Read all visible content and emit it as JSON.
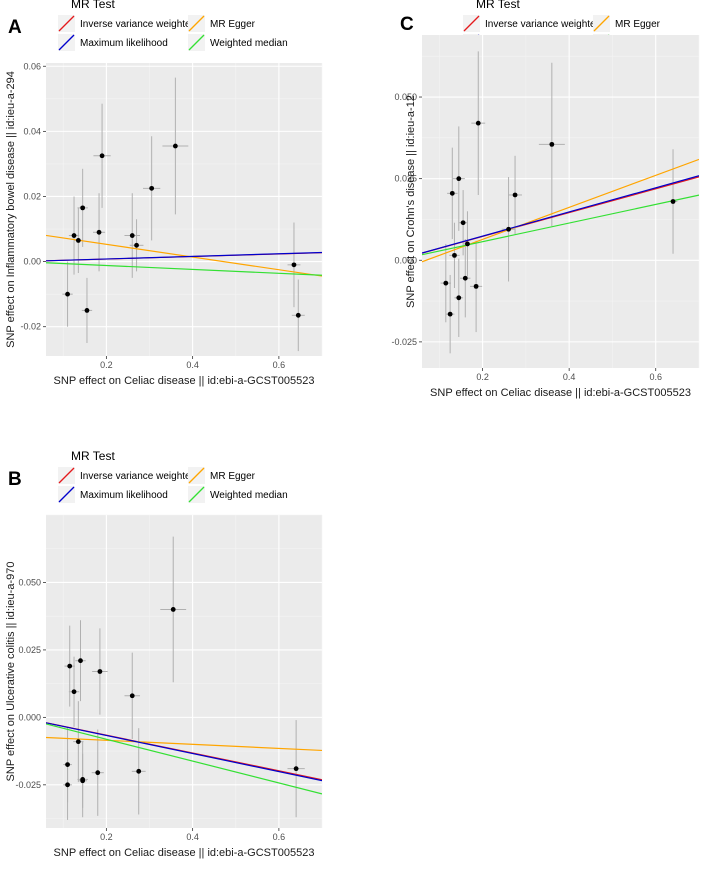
{
  "legend": {
    "title": "MR Test",
    "items": [
      {
        "label": "Inverse variance weighted",
        "color": "#e41a1c"
      },
      {
        "label": "MR Egger",
        "color": "#ffa500"
      },
      {
        "label": "Maximum likelihood",
        "color": "#0000cc"
      },
      {
        "label": "Weighted median",
        "color": "#33e033"
      }
    ]
  },
  "colors": {
    "panel_bg": "#ebebeb",
    "grid_major": "#ffffff",
    "grid_minor": "#f4f4f4",
    "point": "#000000",
    "errorbar": "#b0b0b0"
  },
  "chart_data": [
    {
      "panel": "A",
      "type": "scatter",
      "xlabel": "SNP effect on Celiac disease || id:ebi-a-GCST005523",
      "ylabel": "SNP effect on Inflammatory bowel disease || id:ieu-a-294",
      "xlim": [
        0.06,
        0.7
      ],
      "ylim": [
        -0.029,
        0.061
      ],
      "xticks": [
        {
          "v": 0.2,
          "label": "0.2"
        },
        {
          "v": 0.4,
          "label": "0.4"
        },
        {
          "v": 0.6,
          "label": "0.6"
        }
      ],
      "yticks": [
        {
          "v": -0.02,
          "label": "-0.02"
        },
        {
          "v": 0.0,
          "label": "0.00"
        },
        {
          "v": 0.02,
          "label": "0.02"
        },
        {
          "v": 0.04,
          "label": "0.04"
        },
        {
          "v": 0.06,
          "label": "0.06"
        }
      ],
      "points": [
        {
          "x": 0.11,
          "y": -0.01,
          "xerr": 0.012,
          "yerr": 0.01
        },
        {
          "x": 0.125,
          "y": 0.008,
          "xerr": 0.012,
          "yerr": 0.012
        },
        {
          "x": 0.135,
          "y": 0.0065,
          "xerr": 0.01,
          "yerr": 0.01
        },
        {
          "x": 0.145,
          "y": 0.0165,
          "xerr": 0.012,
          "yerr": 0.012
        },
        {
          "x": 0.155,
          "y": -0.015,
          "xerr": 0.012,
          "yerr": 0.01
        },
        {
          "x": 0.183,
          "y": 0.009,
          "xerr": 0.014,
          "yerr": 0.012
        },
        {
          "x": 0.19,
          "y": 0.0325,
          "xerr": 0.02,
          "yerr": 0.016
        },
        {
          "x": 0.26,
          "y": 0.008,
          "xerr": 0.018,
          "yerr": 0.013
        },
        {
          "x": 0.27,
          "y": 0.005,
          "xerr": 0.016,
          "yerr": 0.008
        },
        {
          "x": 0.305,
          "y": 0.0225,
          "xerr": 0.02,
          "yerr": 0.016
        },
        {
          "x": 0.36,
          "y": 0.0355,
          "xerr": 0.03,
          "yerr": 0.021
        },
        {
          "x": 0.635,
          "y": -0.001,
          "xerr": 0.015,
          "yerr": 0.013
        },
        {
          "x": 0.645,
          "y": -0.0165,
          "xerr": 0.015,
          "yerr": 0.011
        }
      ],
      "lines": [
        {
          "method": "Inverse variance weighted",
          "intercept": 0.0,
          "slope": 0.0039
        },
        {
          "method": "MR Egger",
          "intercept": 0.0092,
          "slope": -0.0195
        },
        {
          "method": "Maximum likelihood",
          "intercept": 0.0,
          "slope": 0.004
        },
        {
          "method": "Weighted median",
          "intercept": 0.0,
          "slope": -0.006
        }
      ]
    },
    {
      "panel": "B",
      "type": "scatter",
      "xlabel": "SNP effect on Celiac disease || id:ebi-a-GCST005523",
      "ylabel": "SNP effect on Ulcerative colitis || id:ieu-a-970",
      "xlim": [
        0.06,
        0.7
      ],
      "ylim": [
        -0.041,
        0.075
      ],
      "xticks": [
        {
          "v": 0.2,
          "label": "0.2"
        },
        {
          "v": 0.4,
          "label": "0.4"
        },
        {
          "v": 0.6,
          "label": "0.6"
        }
      ],
      "yticks": [
        {
          "v": -0.025,
          "label": "-0.025"
        },
        {
          "v": 0.0,
          "label": "0.000"
        },
        {
          "v": 0.025,
          "label": "0.025"
        },
        {
          "v": 0.05,
          "label": "0.050"
        }
      ],
      "points": [
        {
          "x": 0.11,
          "y": -0.0175,
          "xerr": 0.01,
          "yerr": 0.014
        },
        {
          "x": 0.11,
          "y": -0.025,
          "xerr": 0.01,
          "yerr": 0.013
        },
        {
          "x": 0.115,
          "y": 0.019,
          "xerr": 0.012,
          "yerr": 0.015
        },
        {
          "x": 0.125,
          "y": 0.0095,
          "xerr": 0.012,
          "yerr": 0.013
        },
        {
          "x": 0.135,
          "y": -0.009,
          "xerr": 0.012,
          "yerr": 0.015
        },
        {
          "x": 0.14,
          "y": 0.021,
          "xerr": 0.012,
          "yerr": 0.015
        },
        {
          "x": 0.145,
          "y": -0.023,
          "xerr": 0.012,
          "yerr": 0.014
        },
        {
          "x": 0.145,
          "y": -0.0235,
          "xerr": 0.01,
          "yerr": 0.01
        },
        {
          "x": 0.18,
          "y": -0.0205,
          "xerr": 0.014,
          "yerr": 0.016
        },
        {
          "x": 0.185,
          "y": 0.017,
          "xerr": 0.018,
          "yerr": 0.016
        },
        {
          "x": 0.26,
          "y": 0.008,
          "xerr": 0.018,
          "yerr": 0.016
        },
        {
          "x": 0.275,
          "y": -0.02,
          "xerr": 0.016,
          "yerr": 0.016
        },
        {
          "x": 0.355,
          "y": 0.04,
          "xerr": 0.03,
          "yerr": 0.027
        },
        {
          "x": 0.64,
          "y": -0.019,
          "xerr": 0.02,
          "yerr": 0.018
        }
      ],
      "lines": [
        {
          "method": "Inverse variance weighted",
          "intercept": 0.0,
          "slope": -0.033
        },
        {
          "method": "MR Egger",
          "intercept": -0.007,
          "slope": -0.0075
        },
        {
          "method": "Maximum likelihood",
          "intercept": 0.0,
          "slope": -0.0335
        },
        {
          "method": "Weighted median",
          "intercept": 0.0,
          "slope": -0.0405
        }
      ]
    },
    {
      "panel": "C",
      "type": "scatter",
      "xlabel": "SNP effect on Celiac disease || id:ebi-a-GCST005523",
      "ylabel": "SNP effect on Crohn's disease || id:ieu-a-12",
      "xlim": [
        0.06,
        0.7
      ],
      "ylim": [
        -0.033,
        0.069
      ],
      "xticks": [
        {
          "v": 0.2,
          "label": "0.2"
        },
        {
          "v": 0.4,
          "label": "0.4"
        },
        {
          "v": 0.6,
          "label": "0.6"
        }
      ],
      "yticks": [
        {
          "v": -0.025,
          "label": "-0.025"
        },
        {
          "v": 0.0,
          "label": "0.000"
        },
        {
          "v": 0.025,
          "label": "0.025"
        },
        {
          "v": 0.05,
          "label": "0.050"
        }
      ],
      "points": [
        {
          "x": 0.115,
          "y": -0.007,
          "xerr": 0.012,
          "yerr": 0.012
        },
        {
          "x": 0.125,
          "y": -0.0165,
          "xerr": 0.01,
          "yerr": 0.012
        },
        {
          "x": 0.13,
          "y": 0.0205,
          "xerr": 0.012,
          "yerr": 0.014
        },
        {
          "x": 0.135,
          "y": 0.0015,
          "xerr": 0.012,
          "yerr": 0.01
        },
        {
          "x": 0.145,
          "y": 0.025,
          "xerr": 0.014,
          "yerr": 0.016
        },
        {
          "x": 0.145,
          "y": -0.0115,
          "xerr": 0.01,
          "yerr": 0.012
        },
        {
          "x": 0.155,
          "y": 0.0115,
          "xerr": 0.01,
          "yerr": 0.01
        },
        {
          "x": 0.16,
          "y": -0.0055,
          "xerr": 0.012,
          "yerr": 0.012
        },
        {
          "x": 0.165,
          "y": 0.005,
          "xerr": 0.01,
          "yerr": 0.01
        },
        {
          "x": 0.185,
          "y": -0.008,
          "xerr": 0.014,
          "yerr": 0.014
        },
        {
          "x": 0.19,
          "y": 0.042,
          "xerr": 0.016,
          "yerr": 0.022
        },
        {
          "x": 0.26,
          "y": 0.0095,
          "xerr": 0.016,
          "yerr": 0.016
        },
        {
          "x": 0.275,
          "y": 0.02,
          "xerr": 0.016,
          "yerr": 0.012
        },
        {
          "x": 0.36,
          "y": 0.0355,
          "xerr": 0.03,
          "yerr": 0.025
        },
        {
          "x": 0.64,
          "y": 0.018,
          "xerr": 0.01,
          "yerr": 0.016
        }
      ],
      "lines": [
        {
          "method": "Inverse variance weighted",
          "intercept": 0.0,
          "slope": 0.0365
        },
        {
          "method": "MR Egger",
          "intercept": -0.0034,
          "slope": 0.049
        },
        {
          "method": "Maximum likelihood",
          "intercept": 0.0,
          "slope": 0.037
        },
        {
          "method": "Weighted median",
          "intercept": 0.0,
          "slope": 0.0285
        }
      ]
    }
  ]
}
